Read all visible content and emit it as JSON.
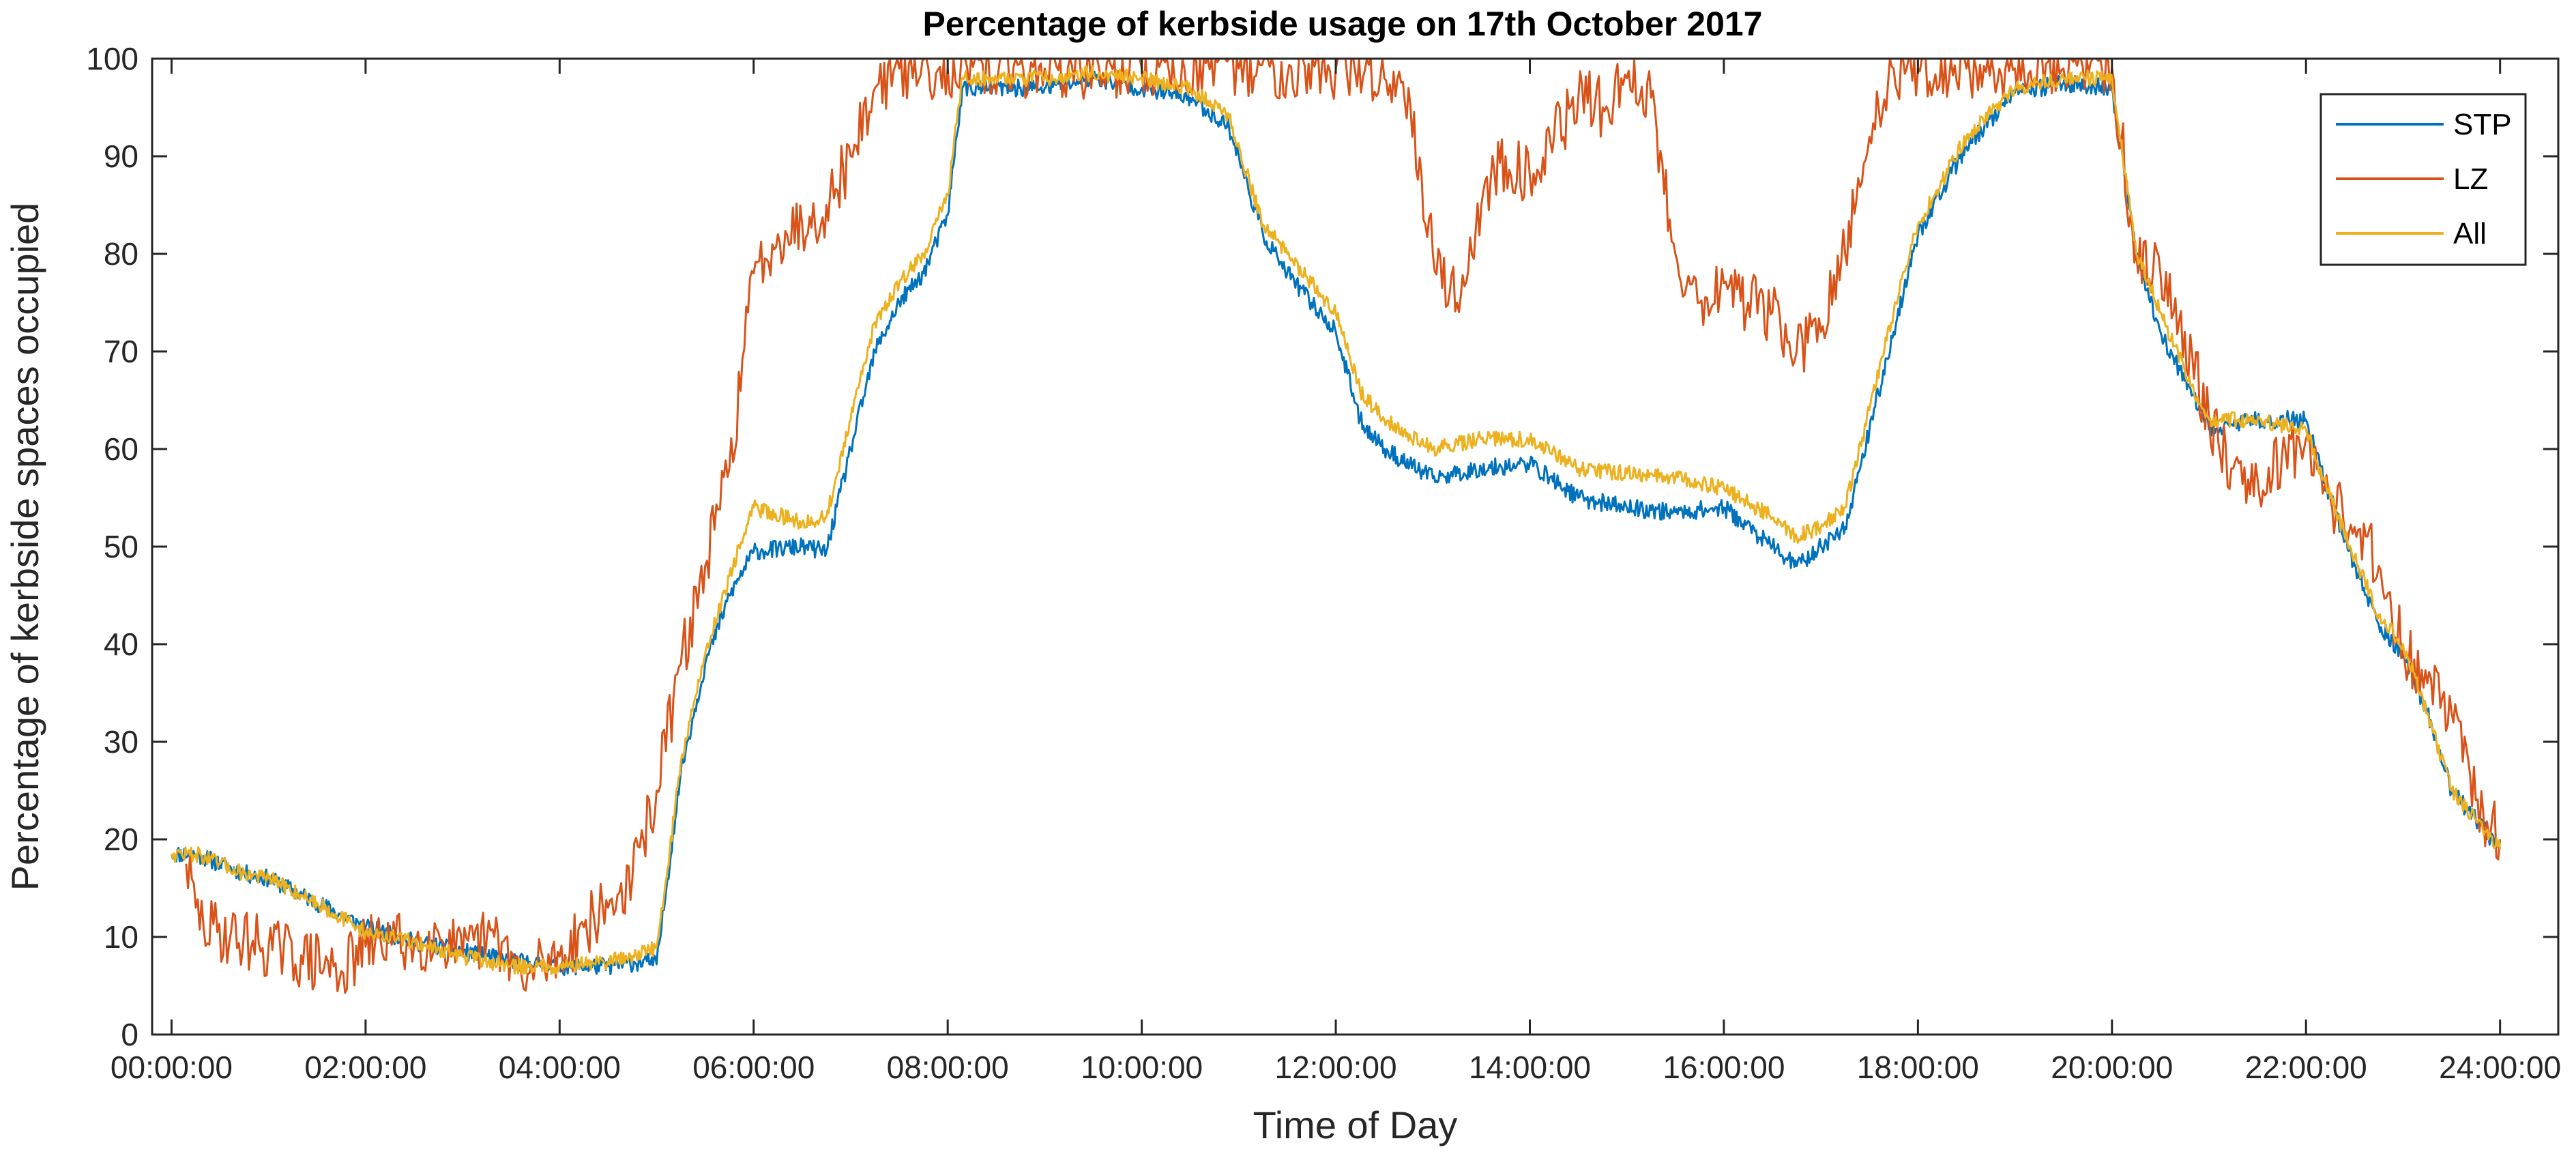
{
  "chart_data": {
    "type": "line",
    "title": "Percentage of kerbside usage on 17th October 2017",
    "xlabel": "Time of Day",
    "ylabel": "Percentage of kerbside spaces occupied",
    "xlim": [
      -0.2,
      24.6
    ],
    "ylim": [
      0,
      100
    ],
    "x_unit": "hours",
    "x_ticks": [
      0,
      2,
      4,
      6,
      8,
      10,
      12,
      14,
      16,
      18,
      20,
      22,
      24
    ],
    "x_tick_labels": [
      "00:00:00",
      "02:00:00",
      "04:00:00",
      "06:00:00",
      "08:00:00",
      "10:00:00",
      "12:00:00",
      "14:00:00",
      "16:00:00",
      "18:00:00",
      "20:00:00",
      "22:00:00",
      "24:00:00"
    ],
    "y_ticks": [
      0,
      10,
      20,
      30,
      40,
      50,
      60,
      70,
      80,
      90,
      100
    ],
    "y_tick_labels": [
      "0",
      "10",
      "20",
      "30",
      "40",
      "50",
      "60",
      "70",
      "80",
      "90",
      "100"
    ],
    "grid": false,
    "legend_position": "top-right",
    "series": [
      {
        "name": "STP",
        "color": "#0072BD",
        "x": [
          0.0,
          0.25,
          0.5,
          0.75,
          1.0,
          1.5,
          2.0,
          2.5,
          3.0,
          3.5,
          4.0,
          4.5,
          4.9,
          5.0,
          5.1,
          5.25,
          5.5,
          5.75,
          6.0,
          6.5,
          6.75,
          7.0,
          7.25,
          7.5,
          7.75,
          8.0,
          8.15,
          8.5,
          9.0,
          9.5,
          10.0,
          10.5,
          10.9,
          11.25,
          11.5,
          11.75,
          12.0,
          12.25,
          12.5,
          13.0,
          13.5,
          14.0,
          14.5,
          15.0,
          15.5,
          16.0,
          16.5,
          16.75,
          17.0,
          17.25,
          17.5,
          17.75,
          18.0,
          18.5,
          19.0,
          19.5,
          20.0,
          20.25,
          20.5,
          20.75,
          21.0,
          21.5,
          22.0,
          22.25,
          22.5,
          22.75,
          23.0,
          23.25,
          23.5,
          23.75,
          24.0
        ],
        "values": [
          18.5,
          18.5,
          17.5,
          16.5,
          16.0,
          13.5,
          11.0,
          9.5,
          8.5,
          7.5,
          7.0,
          7.0,
          7.5,
          7.2,
          15.0,
          27.0,
          38.0,
          45.0,
          49.5,
          50.0,
          49.5,
          60.0,
          70.0,
          75.0,
          78.0,
          84.0,
          97.0,
          97.0,
          97.0,
          98.0,
          97.0,
          96.0,
          93.0,
          82.0,
          78.0,
          75.0,
          72.0,
          63.0,
          60.0,
          57.0,
          58.0,
          58.5,
          55.0,
          54.0,
          53.5,
          54.0,
          50.0,
          48.0,
          50.0,
          52.0,
          62.0,
          72.0,
          82.0,
          91.0,
          96.5,
          97.5,
          97.0,
          80.0,
          72.0,
          67.0,
          62.0,
          63.0,
          63.0,
          55.0,
          48.0,
          42.0,
          39.0,
          33.0,
          25.0,
          22.0,
          19.0
        ]
      },
      {
        "name": "LZ",
        "color": "#D95319",
        "x": [
          0.15,
          0.25,
          0.33,
          1.0,
          1.75,
          2.0,
          2.25,
          2.5,
          2.75,
          3.0,
          3.25,
          3.5,
          3.65,
          3.75,
          4.0,
          4.25,
          4.5,
          4.75,
          5.0,
          5.25,
          5.5,
          5.75,
          6.0,
          6.25,
          6.5,
          6.75,
          7.0,
          7.25,
          7.5,
          8.0,
          9.0,
          10.0,
          11.0,
          12.0,
          12.5,
          12.75,
          13.0,
          13.25,
          13.5,
          13.75,
          14.0,
          14.25,
          14.5,
          14.75,
          15.0,
          15.25,
          15.5,
          15.75,
          16.0,
          16.25,
          16.5,
          16.75,
          17.0,
          17.25,
          17.5,
          17.75,
          18.0,
          18.5,
          19.0,
          19.5,
          20.0,
          20.25,
          20.5,
          20.75,
          21.0,
          21.25,
          21.5,
          21.75,
          22.0,
          22.25,
          22.5,
          22.75,
          23.0,
          23.25,
          23.5,
          23.75,
          24.0
        ],
        "values": [
          17.5,
          13.0,
          11.0,
          9.0,
          6.5,
          9.0,
          10.0,
          9.0,
          10.5,
          8.0,
          10.0,
          8.5,
          4.5,
          7.0,
          8.0,
          11.0,
          13.0,
          16.0,
          25.0,
          38.0,
          48.0,
          58.0,
          78.0,
          82.0,
          83.0,
          85.0,
          90.0,
          97.0,
          99.0,
          99.0,
          99.0,
          99.0,
          99.0,
          99.0,
          98.0,
          97.0,
          80.0,
          75.0,
          85.0,
          90.0,
          88.0,
          92.0,
          96.0,
          95.0,
          98.0,
          96.0,
          80.0,
          75.0,
          77.0,
          75.0,
          74.0,
          70.0,
          72.0,
          80.0,
          92.0,
          99.0,
          99.0,
          99.0,
          99.0,
          99.0,
          99.0,
          80.0,
          78.0,
          72.0,
          63.0,
          58.0,
          57.0,
          59.0,
          61.0,
          55.0,
          52.0,
          48.0,
          40.0,
          36.0,
          33.0,
          24.0,
          20.0
        ]
      },
      {
        "name": "All",
        "color": "#EDB120",
        "x": [
          0.0,
          0.25,
          0.5,
          0.75,
          1.0,
          1.5,
          2.0,
          2.5,
          3.0,
          3.5,
          4.0,
          4.5,
          4.9,
          5.0,
          5.1,
          5.25,
          5.5,
          5.75,
          6.0,
          6.5,
          6.75,
          7.0,
          7.25,
          7.5,
          7.75,
          8.0,
          8.15,
          8.5,
          9.0,
          9.5,
          10.0,
          10.5,
          10.9,
          11.25,
          11.5,
          11.75,
          12.0,
          12.25,
          12.5,
          13.0,
          13.5,
          14.0,
          14.5,
          15.0,
          15.5,
          16.0,
          16.5,
          16.75,
          17.0,
          17.25,
          17.5,
          17.75,
          18.0,
          18.5,
          19.0,
          19.5,
          20.0,
          20.25,
          20.5,
          20.75,
          21.0,
          21.5,
          22.0,
          22.25,
          22.5,
          22.75,
          23.0,
          23.25,
          23.5,
          23.75,
          24.0
        ],
        "values": [
          18.5,
          18.5,
          17.5,
          16.5,
          16.0,
          13.5,
          10.5,
          9.5,
          8.0,
          7.0,
          7.0,
          7.5,
          8.5,
          9.0,
          16.0,
          28.0,
          39.0,
          47.0,
          54.0,
          52.5,
          53.0,
          63.0,
          73.0,
          77.0,
          80.0,
          86.0,
          98.0,
          98.0,
          98.0,
          98.5,
          98.0,
          97.0,
          94.0,
          83.0,
          80.0,
          77.0,
          74.0,
          66.0,
          63.0,
          60.0,
          61.0,
          61.0,
          58.0,
          57.5,
          57.0,
          56.0,
          53.0,
          51.0,
          52.0,
          54.0,
          64.0,
          74.0,
          83.0,
          92.0,
          97.0,
          98.0,
          98.0,
          80.0,
          74.0,
          68.0,
          63.0,
          63.0,
          62.0,
          55.0,
          49.0,
          43.0,
          40.0,
          33.0,
          25.0,
          22.0,
          19.0
        ]
      }
    ]
  }
}
